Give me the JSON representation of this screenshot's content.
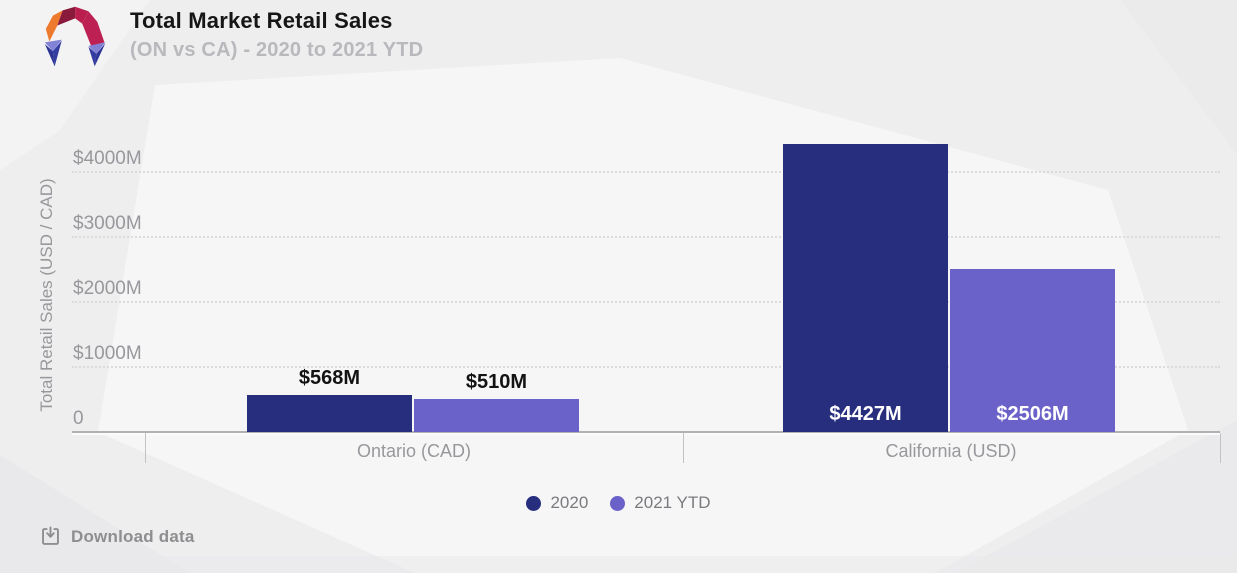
{
  "header": {
    "title": "Total Market Retail Sales",
    "subtitle": "(ON vs CA) - 2020 to 2021 YTD",
    "logo_icon": "faceted-arch-logo"
  },
  "chart_data": {
    "type": "bar",
    "title": "Total Market Retail Sales (ON vs CA) - 2020 to 2021 YTD",
    "categories": [
      "Ontario (CAD)",
      "California (USD)"
    ],
    "series": [
      {
        "name": "2020",
        "color": "#272e7d",
        "values": [
          568,
          4427
        ],
        "value_labels": [
          "$568M",
          "$4427M"
        ]
      },
      {
        "name": "2021 YTD",
        "color": "#6a62c8",
        "values": [
          510,
          2506
        ],
        "value_labels": [
          "$510M",
          "$2506M"
        ]
      }
    ],
    "ylabel": "Total Retail Sales (USD / CAD)",
    "yticks": [
      {
        "label": "$4000M",
        "value": 4000
      },
      {
        "label": "$3000M",
        "value": 3000
      },
      {
        "label": "$2000M",
        "value": 2000
      },
      {
        "label": "$1000M",
        "value": 1000
      },
      {
        "label": "0",
        "value": 0
      }
    ],
    "ylim": [
      0,
      4500
    ],
    "grid": "horizontal-dotted",
    "legend_position": "bottom-center"
  },
  "footer": {
    "download_label": "Download data",
    "download_icon": "download-tray-icon"
  },
  "colors": {
    "series_2020": "#272e7d",
    "series_2021_ytd": "#6a62c8",
    "background": "#eeeeef",
    "axis_line": "#b1b1b4",
    "grid_line": "#d8d8da",
    "muted_text": "#98989c"
  }
}
